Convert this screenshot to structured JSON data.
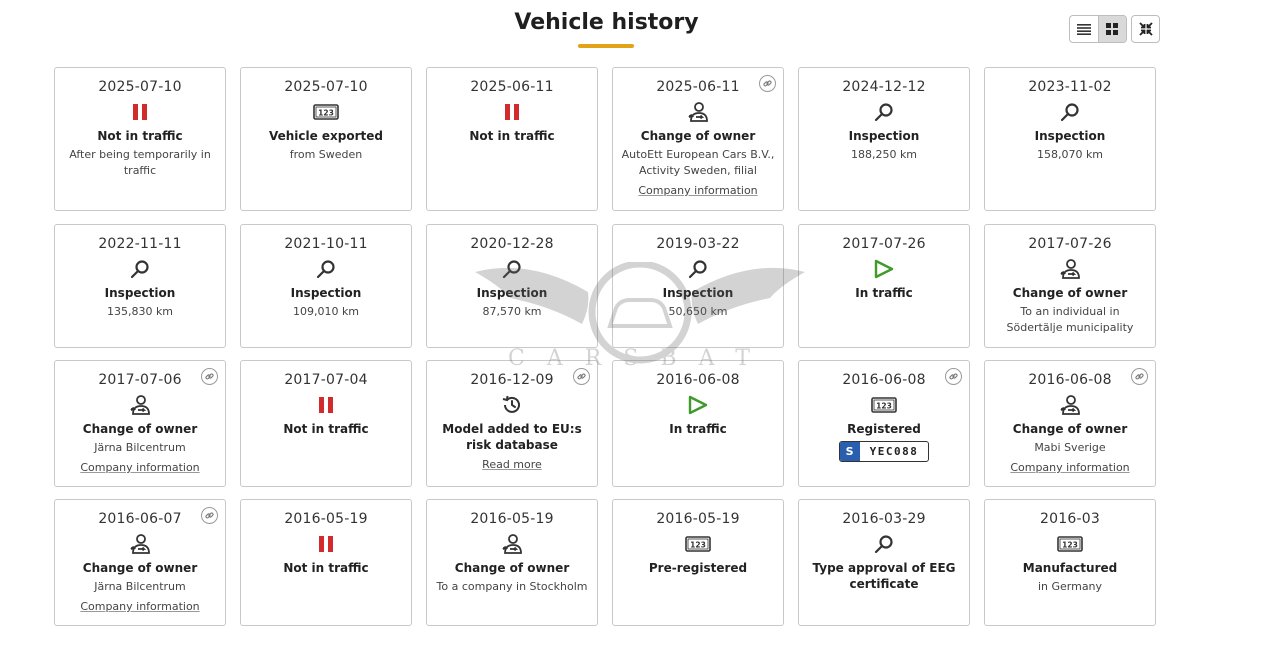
{
  "page": {
    "title": "Vehicle history"
  },
  "toolbar": {
    "list_view_icon": "list-icon",
    "grid_view_icon": "grid-icon",
    "collapse_icon": "collapse-icon"
  },
  "watermark": {
    "text": "CARSBAT"
  },
  "cards": [
    {
      "date": "2025-07-10",
      "icon": "stop",
      "event": "Not in traffic",
      "detail": "After being temporarily in traffic"
    },
    {
      "date": "2025-07-10",
      "icon": "plate",
      "event": "Vehicle exported",
      "detail": "from Sweden"
    },
    {
      "date": "2025-06-11",
      "icon": "stop",
      "event": "Not in traffic"
    },
    {
      "date": "2025-06-11",
      "icon": "owner",
      "event": "Change of owner",
      "detail": "AutoEtt European Cars B.V., Activity Sweden, filial",
      "link": "Company information",
      "has_link_icon": true
    },
    {
      "date": "2024-12-12",
      "icon": "search",
      "event": "Inspection",
      "detail": "188,250 km"
    },
    {
      "date": "2023-11-02",
      "icon": "search",
      "event": "Inspection",
      "detail": "158,070 km"
    },
    {
      "date": "2022-11-11",
      "icon": "search",
      "event": "Inspection",
      "detail": "135,830 km"
    },
    {
      "date": "2021-10-11",
      "icon": "search",
      "event": "Inspection",
      "detail": "109,010 km"
    },
    {
      "date": "2020-12-28",
      "icon": "search",
      "event": "Inspection",
      "detail": "87,570 km"
    },
    {
      "date": "2019-03-22",
      "icon": "search",
      "event": "Inspection",
      "detail": "50,650 km"
    },
    {
      "date": "2017-07-26",
      "icon": "play",
      "event": "In traffic"
    },
    {
      "date": "2017-07-26",
      "icon": "owner",
      "event": "Change of owner",
      "detail": "To an individual in Södertälje municipality"
    },
    {
      "date": "2017-07-06",
      "icon": "owner",
      "event": "Change of owner",
      "detail": "Järna Bilcentrum",
      "link": "Company information",
      "has_link_icon": true
    },
    {
      "date": "2017-07-04",
      "icon": "stop",
      "event": "Not in traffic"
    },
    {
      "date": "2016-12-09",
      "icon": "history",
      "event": "Model added to EU:s risk database",
      "link": "Read more",
      "has_link_icon": true
    },
    {
      "date": "2016-06-08",
      "icon": "play",
      "event": "In traffic"
    },
    {
      "date": "2016-06-08",
      "icon": "plate",
      "event": "Registered",
      "plate": {
        "country": "S",
        "number": "YEC088"
      },
      "has_link_icon": true
    },
    {
      "date": "2016-06-08",
      "icon": "owner",
      "event": "Change of owner",
      "detail": "Mabi Sverige",
      "link": "Company information",
      "has_link_icon": true
    },
    {
      "date": "2016-06-07",
      "icon": "owner",
      "event": "Change of owner",
      "detail": "Järna Bilcentrum",
      "link": "Company information",
      "has_link_icon": true
    },
    {
      "date": "2016-05-19",
      "icon": "stop",
      "event": "Not in traffic"
    },
    {
      "date": "2016-05-19",
      "icon": "owner",
      "event": "Change of owner",
      "detail": "To a company in Stockholm"
    },
    {
      "date": "2016-05-19",
      "icon": "plate",
      "event": "Pre-registered"
    },
    {
      "date": "2016-03-29",
      "icon": "search",
      "event": "Type approval of EEG certificate"
    },
    {
      "date": "2016-03",
      "icon": "plate",
      "event": "Manufactured",
      "detail": "in Germany"
    }
  ],
  "colors": {
    "accent": "#e3a318",
    "stop": "#d12b2b",
    "play": "#3f9b2a",
    "plate_blue": "#2a5fb0"
  }
}
